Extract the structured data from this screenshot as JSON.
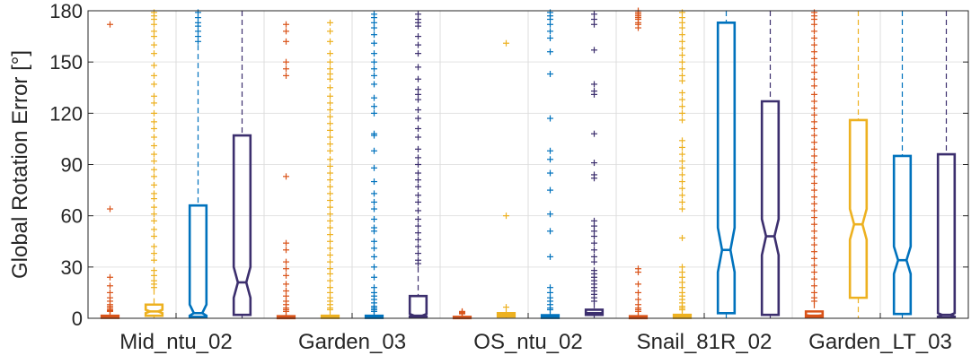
{
  "chart_data": {
    "type": "boxplot",
    "ylabel": "Global Rotation Error [°]",
    "xlabel": "",
    "ylim": [
      0,
      180
    ],
    "yticks": [
      0,
      30,
      60,
      90,
      120,
      150,
      180
    ],
    "grid": true,
    "notched": true,
    "categories": [
      "Mid_ntu_02",
      "Garden_03",
      "OS_ntu_02",
      "Snail_81R_02",
      "Garden_LT_03"
    ],
    "method_colors": [
      "#d95319",
      "#edb120",
      "#0072bd",
      "#3c2f6e"
    ],
    "groups": [
      {
        "category": "Mid_ntu_02",
        "boxes": [
          {
            "q1": 0.2,
            "median": 0.6,
            "q3": 1.5,
            "whisker_low": 0.0,
            "whisker_high": 3.5,
            "notch_low": 0.4,
            "notch_high": 0.8,
            "outliers": [
              172,
              64,
              24,
              19,
              15,
              12,
              10,
              8,
              7,
              6,
              5,
              4.5,
              4
            ]
          },
          {
            "q1": 1.5,
            "median": 4,
            "q3": 8,
            "whisker_low": 0.2,
            "whisker_high": 17,
            "notch_low": 3,
            "notch_high": 5,
            "outliers": [
              179,
              177,
              175,
              172,
              168,
              165,
              160,
              155,
              148,
              142,
              137,
              130,
              126,
              120,
              115,
              111,
              106,
              101,
              96,
              92,
              87,
              83,
              78,
              73,
              70,
              65,
              61,
              57,
              52,
              48,
              42,
              38,
              34,
              28,
              25,
              22,
              20,
              18
            ]
          },
          {
            "q1": 0.8,
            "median": 3,
            "q3": 66,
            "whisker_low": 0,
            "whisker_high": 160,
            "notch_low": 1.5,
            "notch_high": 8,
            "outliers": [
              179,
              176,
              173,
              171,
              168,
              165,
              162
            ]
          },
          {
            "q1": 2,
            "median": 21,
            "q3": 107,
            "whisker_low": 0,
            "whisker_high": 180,
            "notch_low": 12,
            "notch_high": 30,
            "outliers": []
          }
        ]
      },
      {
        "category": "Garden_03",
        "boxes": [
          {
            "q1": 0.1,
            "median": 0.4,
            "q3": 1.2,
            "whisker_low": 0,
            "whisker_high": 3,
            "notch_low": 0.3,
            "notch_high": 0.6,
            "outliers": [
              172,
              168,
              162,
              150,
              146,
              142,
              83,
              44,
              40,
              33,
              29,
              25,
              20,
              16,
              13,
              10,
              8,
              6,
              5,
              4
            ]
          },
          {
            "q1": 0.2,
            "median": 0.6,
            "q3": 1.5,
            "whisker_low": 0,
            "whisker_high": 3.5,
            "notch_low": 0.4,
            "notch_high": 0.8,
            "outliers": [
              173,
              168,
              162,
              155,
              150,
              146,
              143,
              140,
              135,
              130,
              126,
              122,
              118,
              114,
              110,
              106,
              102,
              98,
              93,
              89,
              85,
              81,
              77,
              73,
              69,
              65,
              61,
              57,
              53,
              49,
              45,
              41,
              37,
              33,
              29,
              26,
              22,
              18,
              15,
              12,
              10,
              8,
              6,
              5
            ]
          },
          {
            "q1": 0.2,
            "median": 0.6,
            "q3": 1.5,
            "whisker_low": 0,
            "whisker_high": 3.5,
            "notch_low": 0.4,
            "notch_high": 0.8,
            "outliers": [
              178,
              176,
              173,
              170,
              166,
              161,
              155,
              150,
              146,
              142,
              137,
              129,
              124,
              120,
              108,
              107,
              98,
              88,
              80,
              73,
              68,
              64,
              58,
              53,
              51,
              45,
              41,
              36,
              30,
              24,
              18,
              15,
              13,
              11,
              9,
              7,
              6,
              5,
              4
            ]
          },
          {
            "q1": 0.5,
            "median": 1.5,
            "q3": 13,
            "whisker_low": 0,
            "whisker_high": 30,
            "notch_low": 1,
            "notch_high": 2.5,
            "outliers": [
              178,
              175,
              173,
              171,
              165,
              160,
              155,
              147,
              140,
              134,
              131,
              128,
              122,
              117,
              111,
              106,
              99,
              94,
              90,
              85,
              81,
              77,
              72,
              68,
              63,
              58,
              54,
              50,
              46,
              42,
              38,
              34,
              32
            ]
          }
        ]
      },
      {
        "category": "OS_ntu_02",
        "boxes": [
          {
            "q1": 0.1,
            "median": 0.3,
            "q3": 0.8,
            "whisker_low": 0,
            "whisker_high": 1.8,
            "notch_low": 0.2,
            "notch_high": 0.4,
            "outliers": [
              4,
              3.5,
              3,
              2.6
            ]
          },
          {
            "q1": 1,
            "median": 2,
            "q3": 3,
            "whisker_low": 0.2,
            "whisker_high": 5,
            "notch_low": 1.8,
            "notch_high": 2.2,
            "outliers": [
              161,
              60,
              6.5
            ]
          },
          {
            "q1": 0.2,
            "median": 0.7,
            "q3": 1.8,
            "whisker_low": 0,
            "whisker_high": 4,
            "notch_low": 0.5,
            "notch_high": 0.9,
            "outliers": [
              179,
              177,
              175,
              172,
              168,
              164,
              156,
              143,
              117,
              98,
              93,
              85,
              75,
              61,
              51,
              36,
              18,
              15,
              12,
              10,
              8,
              6,
              5
            ]
          },
          {
            "q1": 2,
            "median": 3,
            "q3": 5,
            "whisker_low": 0.3,
            "whisker_high": 9,
            "notch_low": 2.7,
            "notch_high": 3.3,
            "outliers": [
              178,
              175,
              172,
              157,
              137,
              133,
              131,
              108,
              91,
              84,
              82,
              57,
              54,
              51,
              48,
              44,
              40,
              36,
              33,
              28,
              26,
              24,
              22,
              20,
              18,
              16,
              14,
              12,
              10
            ]
          }
        ]
      },
      {
        "category": "Snail_81R_02",
        "boxes": [
          {
            "q1": 0.1,
            "median": 0.4,
            "q3": 1.2,
            "whisker_low": 0,
            "whisker_high": 3,
            "notch_low": 0.3,
            "notch_high": 0.5,
            "outliers": [
              180,
              179,
              178,
              177,
              176,
              175,
              173,
              172,
              170,
              29,
              27,
              20,
              15,
              11,
              8,
              6,
              5,
              4
            ]
          },
          {
            "q1": 0.2,
            "median": 0.8,
            "q3": 2,
            "whisker_low": 0,
            "whisker_high": 4.5,
            "notch_low": 0.6,
            "notch_high": 1,
            "outliers": [
              179,
              176,
              173,
              170,
              166,
              162,
              158,
              154,
              150,
              146,
              142,
              139,
              132,
              128,
              124,
              120,
              116,
              104,
              100,
              96,
              92,
              88,
              84,
              80,
              76,
              72,
              68,
              64,
              47,
              30,
              27,
              24,
              21,
              18,
              15,
              13,
              11,
              9,
              7,
              6,
              5
            ]
          },
          {
            "q1": 3,
            "median": 40,
            "q3": 173,
            "whisker_low": 0,
            "whisker_high": 180,
            "notch_low": 27,
            "notch_high": 53,
            "outliers": []
          },
          {
            "q1": 2,
            "median": 48,
            "q3": 127,
            "whisker_low": 0,
            "whisker_high": 180,
            "notch_low": 37,
            "notch_high": 58,
            "outliers": []
          }
        ]
      },
      {
        "category": "Garden_LT_03",
        "boxes": [
          {
            "q1": 0.5,
            "median": 1.5,
            "q3": 4,
            "whisker_low": 0,
            "whisker_high": 9,
            "notch_low": 1.2,
            "notch_high": 1.8,
            "outliers": [
              179,
              177,
              175,
              172,
              168,
              164,
              160,
              156,
              152,
              148,
              144,
              140,
              136,
              131,
              127,
              123,
              119,
              115,
              111,
              107,
              103,
              99,
              95,
              91,
              87,
              83,
              79,
              75,
              71,
              67,
              63,
              59,
              55,
              51,
              47,
              43,
              39,
              35,
              31,
              27,
              23,
              19,
              15,
              12,
              10
            ]
          },
          {
            "q1": 12,
            "median": 55,
            "q3": 116,
            "whisker_low": 0,
            "whisker_high": 180,
            "notch_low": 46,
            "notch_high": 64,
            "outliers": []
          },
          {
            "q1": 2.5,
            "median": 34,
            "q3": 95,
            "whisker_low": 0,
            "whisker_high": 180,
            "notch_low": 26,
            "notch_high": 42,
            "outliers": []
          },
          {
            "q1": 0.5,
            "median": 2,
            "q3": 96,
            "whisker_low": 0,
            "whisker_high": 180,
            "notch_low": 1,
            "notch_high": 3,
            "outliers": []
          }
        ]
      }
    ]
  }
}
